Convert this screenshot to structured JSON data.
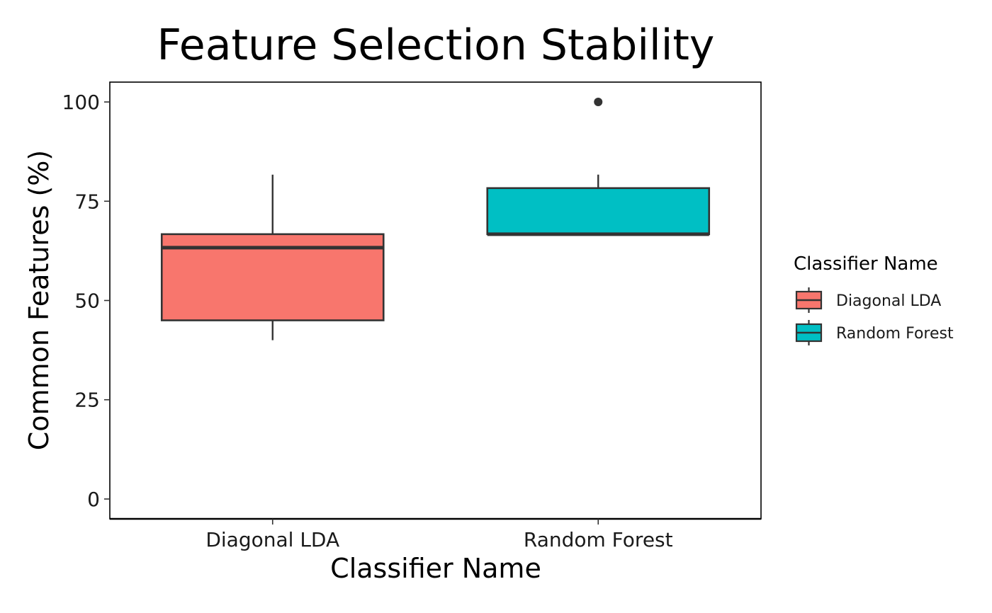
{
  "chart_data": {
    "type": "boxplot",
    "title": "Feature Selection Stability",
    "xlabel": "Classifier Name",
    "ylabel": "Common Features (%)",
    "ylim": [
      -5,
      105
    ],
    "yticks": [
      0,
      25,
      50,
      75,
      100
    ],
    "categories": [
      "Diagonal LDA",
      "Random Forest"
    ],
    "grid": false,
    "legend": {
      "title": "Classifier Name",
      "position": "right",
      "entries": [
        "Diagonal LDA",
        "Random Forest"
      ]
    },
    "series": [
      {
        "name": "Diagonal LDA",
        "color": "#F8766D",
        "whisker_low": 40,
        "q1": 45,
        "median": 63.3,
        "q3": 66.7,
        "whisker_high": 81.7,
        "outliers": []
      },
      {
        "name": "Random Forest",
        "color": "#00BFC4",
        "whisker_low": 66.7,
        "q1": 66.7,
        "median": 66.7,
        "q3": 78.3,
        "whisker_high": 81.7,
        "outliers": [
          100
        ]
      }
    ]
  }
}
